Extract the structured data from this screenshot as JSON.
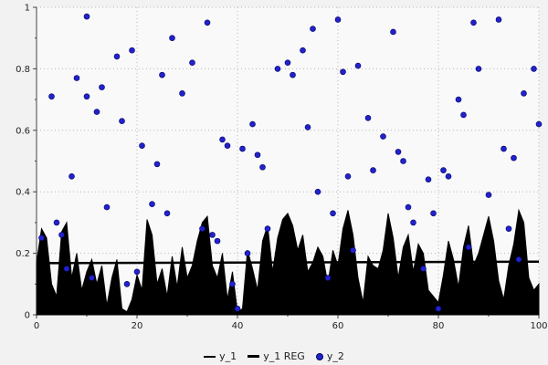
{
  "chart_data": {
    "type": "mixed",
    "title": "",
    "xlabel": "",
    "ylabel": "",
    "xlim": [
      0,
      100
    ],
    "ylim": [
      0,
      1
    ],
    "x_ticks": [
      0,
      20,
      40,
      60,
      80,
      100
    ],
    "x_tick_labels": [
      "0",
      "20",
      "40",
      "60",
      "80",
      "100"
    ],
    "y_ticks": [
      0,
      0.2,
      0.4,
      0.6,
      0.8,
      1
    ],
    "y_tick_labels": [
      "0",
      "0.2",
      "0.4",
      "0.6",
      "0.8",
      "1"
    ],
    "grid": true,
    "grid_style": "dotted",
    "legend_position": "bottom-center",
    "colors": {
      "background": "#f2f2f2",
      "plot_background": "#f9f9f9",
      "grid": "#b8b8b8",
      "axis": "#444444",
      "tick_label": "#222222",
      "area": "#000000",
      "reg_line": "#000000",
      "scatter": "#2222cc",
      "scatter_edge": "#000066"
    },
    "series": [
      {
        "name": "y_1",
        "type": "area",
        "color": "#000000",
        "x_start": 0,
        "x_step": 1,
        "values": [
          0.17,
          0.28,
          0.25,
          0.1,
          0.06,
          0.27,
          0.3,
          0.12,
          0.2,
          0.08,
          0.14,
          0.18,
          0.1,
          0.16,
          0.03,
          0.12,
          0.18,
          0.02,
          0.01,
          0.05,
          0.13,
          0.08,
          0.31,
          0.26,
          0.1,
          0.15,
          0.06,
          0.19,
          0.09,
          0.22,
          0.12,
          0.16,
          0.24,
          0.3,
          0.32,
          0.16,
          0.12,
          0.2,
          0.05,
          0.14,
          0.01,
          0.02,
          0.21,
          0.15,
          0.08,
          0.24,
          0.29,
          0.14,
          0.25,
          0.31,
          0.33,
          0.29,
          0.21,
          0.26,
          0.14,
          0.17,
          0.22,
          0.19,
          0.1,
          0.21,
          0.16,
          0.28,
          0.34,
          0.26,
          0.12,
          0.04,
          0.19,
          0.16,
          0.15,
          0.21,
          0.33,
          0.25,
          0.12,
          0.22,
          0.26,
          0.14,
          0.23,
          0.2,
          0.08,
          0.06,
          0.04,
          0.13,
          0.24,
          0.18,
          0.09,
          0.22,
          0.29,
          0.16,
          0.2,
          0.26,
          0.32,
          0.24,
          0.11,
          0.05,
          0.16,
          0.23,
          0.34,
          0.3,
          0.12,
          0.08,
          0.1
        ]
      },
      {
        "name": "y_1 REG",
        "type": "line",
        "color": "#000000",
        "width": 2.5,
        "x": [
          0,
          100
        ],
        "values": [
          0.168,
          0.173
        ]
      },
      {
        "name": "y_2",
        "type": "scatter",
        "color": "#2222cc",
        "marker_radius": 3,
        "points": [
          [
            1,
            0.25
          ],
          [
            3,
            0.71
          ],
          [
            4,
            0.3
          ],
          [
            5,
            0.26
          ],
          [
            6,
            0.15
          ],
          [
            7,
            0.45
          ],
          [
            8,
            0.77
          ],
          [
            10,
            0.97
          ],
          [
            10,
            0.71
          ],
          [
            11,
            0.12
          ],
          [
            12,
            0.66
          ],
          [
            13,
            0.74
          ],
          [
            14,
            0.35
          ],
          [
            16,
            0.84
          ],
          [
            17,
            0.63
          ],
          [
            18,
            0.1
          ],
          [
            19,
            0.86
          ],
          [
            20,
            0.14
          ],
          [
            21,
            0.55
          ],
          [
            23,
            0.36
          ],
          [
            24,
            0.49
          ],
          [
            25,
            0.78
          ],
          [
            26,
            0.33
          ],
          [
            27,
            0.9
          ],
          [
            29,
            0.72
          ],
          [
            31,
            0.82
          ],
          [
            33,
            0.28
          ],
          [
            34,
            0.95
          ],
          [
            35,
            0.26
          ],
          [
            36,
            0.24
          ],
          [
            37,
            0.57
          ],
          [
            38,
            0.55
          ],
          [
            39,
            0.1
          ],
          [
            40,
            0.02
          ],
          [
            41,
            0.54
          ],
          [
            42,
            0.2
          ],
          [
            43,
            0.62
          ],
          [
            44,
            0.52
          ],
          [
            45,
            0.48
          ],
          [
            46,
            0.28
          ],
          [
            48,
            0.8
          ],
          [
            50,
            0.82
          ],
          [
            51,
            0.78
          ],
          [
            53,
            0.86
          ],
          [
            54,
            0.61
          ],
          [
            55,
            0.93
          ],
          [
            56,
            0.4
          ],
          [
            58,
            0.12
          ],
          [
            59,
            0.33
          ],
          [
            60,
            0.96
          ],
          [
            61,
            0.79
          ],
          [
            62,
            0.45
          ],
          [
            63,
            0.21
          ],
          [
            64,
            0.81
          ],
          [
            66,
            0.64
          ],
          [
            67,
            0.47
          ],
          [
            69,
            0.58
          ],
          [
            71,
            0.92
          ],
          [
            72,
            0.53
          ],
          [
            73,
            0.5
          ],
          [
            74,
            0.35
          ],
          [
            75,
            0.3
          ],
          [
            77,
            0.15
          ],
          [
            78,
            0.44
          ],
          [
            79,
            0.33
          ],
          [
            80,
            0.02
          ],
          [
            81,
            0.47
          ],
          [
            82,
            0.45
          ],
          [
            84,
            0.7
          ],
          [
            85,
            0.65
          ],
          [
            86,
            0.22
          ],
          [
            87,
            0.95
          ],
          [
            88,
            0.8
          ],
          [
            90,
            0.39
          ],
          [
            92,
            0.96
          ],
          [
            93,
            0.54
          ],
          [
            94,
            0.28
          ],
          [
            95,
            0.51
          ],
          [
            96,
            0.18
          ],
          [
            97,
            0.72
          ],
          [
            99,
            0.8
          ],
          [
            100,
            0.62
          ]
        ]
      }
    ],
    "legend": {
      "items": [
        {
          "label": "y_1",
          "swatch": "line"
        },
        {
          "label": "y_1 REG",
          "swatch": "thick-line"
        },
        {
          "label": "y_2",
          "swatch": "dot"
        }
      ]
    }
  }
}
